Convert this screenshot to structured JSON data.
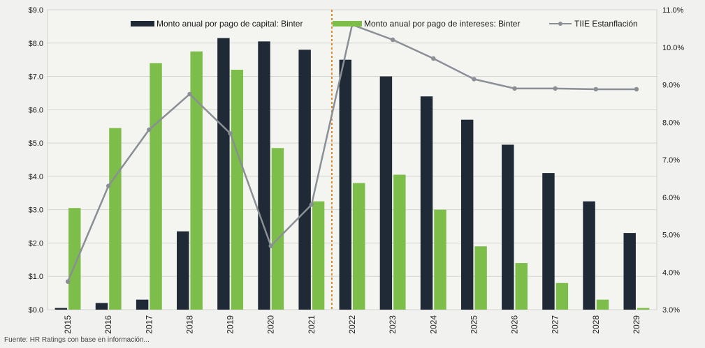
{
  "chart_data": {
    "type": "bar",
    "categories": [
      "2015",
      "2016",
      "2017",
      "2018",
      "2019",
      "2020",
      "2021",
      "2022",
      "2023",
      "2024",
      "2025",
      "2026",
      "2027",
      "2028",
      "2029"
    ],
    "series": [
      {
        "name": "Monto anual por pago de capital: Binter",
        "kind": "bar",
        "axis": "left",
        "color": "#1f2a36",
        "values": [
          0.05,
          0.2,
          0.3,
          2.35,
          8.15,
          8.05,
          7.8,
          7.5,
          7.0,
          6.4,
          5.7,
          4.95,
          4.1,
          3.25,
          2.3
        ]
      },
      {
        "name": "Monto anual por pago de intereses: Binter",
        "kind": "bar",
        "axis": "left",
        "color": "#7dbd4a",
        "values": [
          3.05,
          5.45,
          7.4,
          7.75,
          7.2,
          4.85,
          3.25,
          3.8,
          4.05,
          3.0,
          1.9,
          1.4,
          0.8,
          0.3,
          0.05
        ]
      },
      {
        "name": "TIIE Estanflación",
        "kind": "line",
        "axis": "right",
        "color": "#8a8f95",
        "values": [
          3.75,
          6.3,
          7.8,
          8.75,
          7.7,
          4.7,
          5.8,
          10.6,
          10.2,
          9.7,
          9.15,
          8.9,
          8.9,
          8.88,
          8.88
        ]
      }
    ],
    "left_ticks": [
      "$0.0",
      "$1.0",
      "$2.0",
      "$3.0",
      "$4.0",
      "$5.0",
      "$6.0",
      "$7.0",
      "$8.0",
      "$9.0"
    ],
    "right_ticks": [
      "3.0%",
      "4.0%",
      "5.0%",
      "6.0%",
      "7.0%",
      "8.0%",
      "9.0%",
      "10.0%",
      "11.0%"
    ],
    "ylim_left": [
      0,
      9
    ],
    "ylim_right": [
      3,
      11
    ],
    "divider_between": [
      "2021",
      "2022"
    ],
    "grid": true,
    "legend_position": "top",
    "footer_text": "Fuente: HR Ratings con base en información..."
  }
}
